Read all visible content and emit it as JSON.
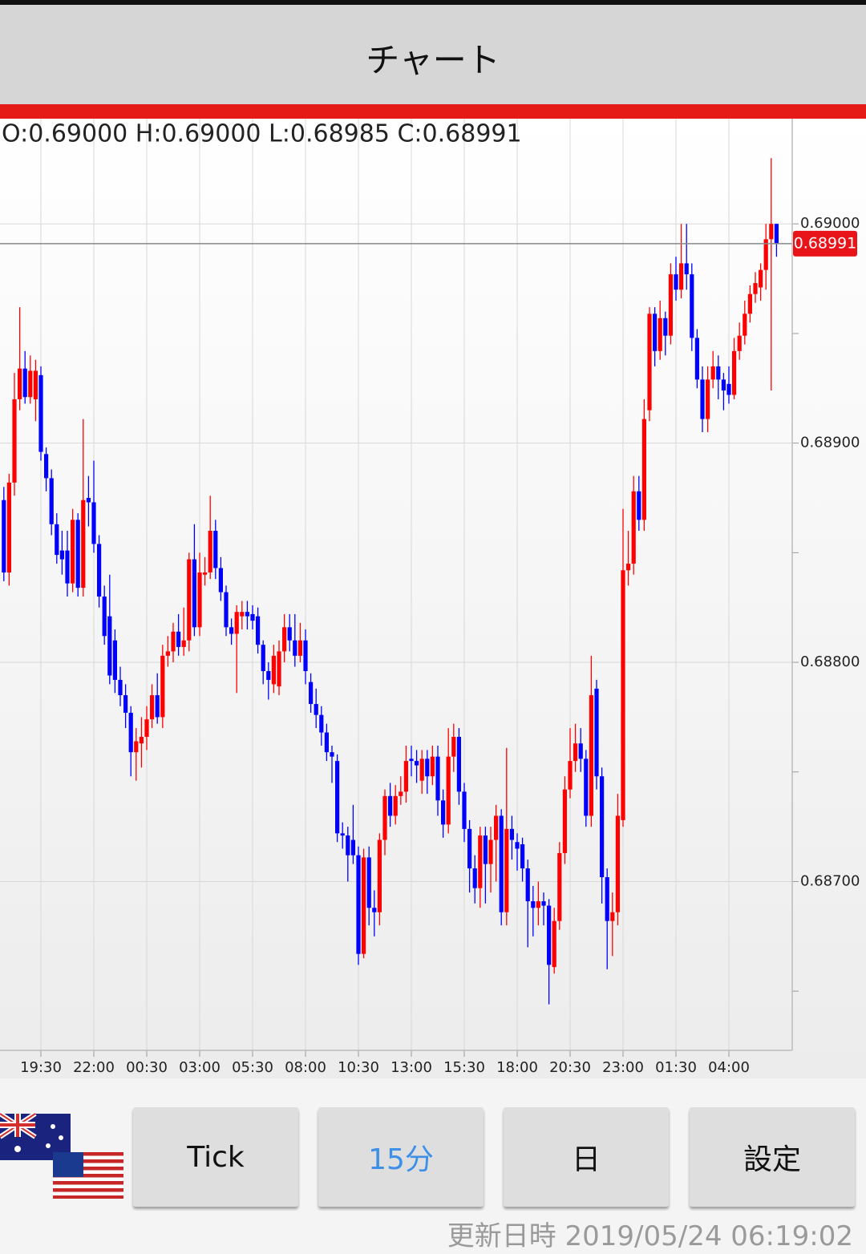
{
  "header": {
    "title": "チャート"
  },
  "chart_data": {
    "type": "candlestick",
    "ohlc_label": "O:0.69000 H:0.69000 L:0.68985 C:0.68991",
    "current_price": 0.68991,
    "up_color": "#ff0000",
    "down_color": "#0000ff",
    "categories": [
      null,
      null,
      null,
      null,
      null,
      null,
      null,
      "19:30",
      null,
      null,
      null,
      null,
      null,
      null,
      null,
      null,
      null,
      "22:00",
      null,
      null,
      null,
      null,
      null,
      null,
      null,
      null,
      null,
      "00:30",
      null,
      null,
      null,
      null,
      null,
      null,
      null,
      null,
      null,
      "03:00",
      null,
      null,
      null,
      null,
      null,
      null,
      null,
      null,
      null,
      "05:30",
      null,
      null,
      null,
      null,
      null,
      null,
      null,
      null,
      null,
      "08:00",
      null,
      null,
      null,
      null,
      null,
      null,
      null,
      null,
      null,
      "10:30",
      null,
      null,
      null,
      null,
      null,
      null,
      null,
      null,
      null,
      "13:00",
      null,
      null,
      null,
      null,
      null,
      null,
      null,
      null,
      null,
      "15:30",
      null,
      null,
      null,
      null,
      null,
      null,
      null,
      null,
      null,
      "18:00",
      null,
      null,
      null,
      null,
      null,
      null,
      null,
      null,
      null,
      "20:30",
      null,
      null,
      null,
      null,
      null,
      null,
      null,
      null,
      null,
      "23:00",
      null,
      null,
      null,
      null,
      null,
      null,
      null,
      null,
      null,
      "01:30",
      null,
      null,
      null,
      null,
      null,
      null,
      null,
      null,
      null,
      "04:00",
      null,
      null,
      null,
      null,
      null,
      null,
      null,
      null,
      null
    ],
    "open": [
      0.68874,
      0.68841,
      0.68882,
      0.6892,
      0.68934,
      0.68921,
      0.6892,
      0.68931,
      0.68895,
      0.68884,
      0.68863,
      0.68851,
      0.68851,
      0.68836,
      0.68865,
      0.68834,
      0.68875,
      0.68873,
      0.68854,
      0.6883,
      0.68821,
      0.6881,
      0.68792,
      0.68785,
      0.68777,
      0.68759,
      0.68763,
      0.68766,
      0.68774,
      0.68785,
      0.68775,
      0.68803,
      0.68805,
      0.68814,
      0.68807,
      0.6881,
      0.68847,
      0.68816,
      0.6884,
      0.68841,
      0.6886,
      0.68843,
      0.68832,
      0.68816,
      0.68813,
      0.68821,
      0.68823,
      0.68822,
      0.68821,
      0.68808,
      0.68796,
      0.6879,
      0.68789,
      0.68805,
      0.68816,
      0.6881,
      0.68803,
      0.6881,
      0.68791,
      0.68781,
      0.68776,
      0.68768,
      0.68759,
      0.68755,
      0.68722,
      0.68721,
      0.68719,
      0.68712,
      0.68667,
      0.68711,
      0.68688,
      0.68686,
      0.68719,
      0.68739,
      0.6873,
      0.68739,
      0.68741,
      0.68756,
      0.68755,
      0.68746,
      0.68756,
      0.68748,
      0.68757,
      0.68737,
      0.68726,
      0.68757,
      0.68766,
      0.68741,
      0.68724,
      0.68706,
      0.68697,
      0.68721,
      0.68708,
      0.68719,
      0.6873,
      0.68686,
      0.68724,
      0.68718,
      0.68717,
      0.68706,
      0.68691,
      0.68688,
      0.68691,
      0.68689,
      0.68661,
      0.68682,
      0.68713,
      0.68742,
      0.68755,
      0.68763,
      0.68756,
      0.6873,
      0.68788,
      0.68748,
      0.68702,
      0.68682,
      0.68686,
      0.68728,
      0.68842,
      0.68845,
      0.68878,
      0.68865,
      0.68915,
      0.68959,
      0.68942,
      0.68957,
      0.68949,
      0.68977,
      0.6897,
      0.68982,
      0.68977,
      0.68948,
      0.68929,
      0.68911,
      0.68929,
      0.68935,
      0.68929,
      0.68927,
      0.68922,
      0.68942,
      0.68949,
      0.68959,
      0.68968,
      0.68971,
      0.68979,
      0.68993,
      0.69
    ],
    "high": [
      0.6888,
      0.68886,
      0.68932,
      0.68962,
      0.68942,
      0.6894,
      0.68938,
      0.68935,
      0.68898,
      0.68888,
      0.68868,
      0.6886,
      0.6886,
      0.6887,
      0.68868,
      0.68911,
      0.68885,
      0.68892,
      0.68858,
      0.68835,
      0.6884,
      0.68815,
      0.68798,
      0.6879,
      0.6878,
      0.6877,
      0.68775,
      0.6878,
      0.6879,
      0.68795,
      0.68808,
      0.68812,
      0.68818,
      0.68822,
      0.68825,
      0.6885,
      0.68863,
      0.6885,
      0.68848,
      0.68876,
      0.68865,
      0.68848,
      0.68835,
      0.6882,
      0.68826,
      0.68828,
      0.68828,
      0.68826,
      0.68825,
      0.6881,
      0.688,
      0.68808,
      0.6881,
      0.68822,
      0.68822,
      0.68822,
      0.68818,
      0.68815,
      0.68795,
      0.68788,
      0.6878,
      0.68772,
      0.68762,
      0.68758,
      0.68727,
      0.68725,
      0.68735,
      0.68716,
      0.68715,
      0.68716,
      0.68696,
      0.68722,
      0.68742,
      0.68745,
      0.68744,
      0.68748,
      0.68762,
      0.68762,
      0.6876,
      0.6876,
      0.6876,
      0.68762,
      0.68762,
      0.68742,
      0.6877,
      0.68772,
      0.6877,
      0.68745,
      0.68728,
      0.68712,
      0.68725,
      0.68725,
      0.68725,
      0.68735,
      0.68733,
      0.68761,
      0.6873,
      0.68722,
      0.6872,
      0.6871,
      0.68698,
      0.687,
      0.68695,
      0.68692,
      0.68688,
      0.68718,
      0.68748,
      0.6877,
      0.68772,
      0.6877,
      0.6876,
      0.68803,
      0.68792,
      0.68752,
      0.68706,
      0.68695,
      0.6874,
      0.6887,
      0.6886,
      0.68885,
      0.68885,
      0.6892,
      0.68962,
      0.68962,
      0.68965,
      0.6896,
      0.68982,
      0.68985,
      0.69,
      0.69,
      0.68982,
      0.68952,
      0.68935,
      0.68935,
      0.68942,
      0.6894,
      0.68932,
      0.68935,
      0.68948,
      0.68955,
      0.68965,
      0.68972,
      0.68978,
      0.68982,
      0.69,
      0.6903,
      0.69
    ],
    "low": [
      0.68837,
      0.68835,
      0.68876,
      0.68915,
      0.68918,
      0.68918,
      0.6891,
      0.68892,
      0.68878,
      0.68858,
      0.68845,
      0.6884,
      0.6883,
      0.68832,
      0.6883,
      0.6883,
      0.68862,
      0.6885,
      0.68825,
      0.68808,
      0.6879,
      0.68786,
      0.6878,
      0.6877,
      0.68748,
      0.68746,
      0.68752,
      0.6876,
      0.6877,
      0.68772,
      0.6877,
      0.68798,
      0.688,
      0.68803,
      0.68803,
      0.68805,
      0.68812,
      0.68812,
      0.68835,
      0.68838,
      0.68838,
      0.68828,
      0.68812,
      0.68808,
      0.68786,
      0.68815,
      0.68815,
      0.68815,
      0.68804,
      0.6879,
      0.68783,
      0.68786,
      0.68785,
      0.688,
      0.68805,
      0.68798,
      0.688,
      0.6879,
      0.68777,
      0.6877,
      0.68762,
      0.68755,
      0.68745,
      0.68718,
      0.68715,
      0.687,
      0.68708,
      0.68662,
      0.68665,
      0.6868,
      0.68675,
      0.6868,
      0.68712,
      0.68725,
      0.68726,
      0.68735,
      0.68736,
      0.68748,
      0.68745,
      0.6874,
      0.6874,
      0.68744,
      0.6873,
      0.6872,
      0.68722,
      0.6875,
      0.68735,
      0.68718,
      0.68695,
      0.6869,
      0.68688,
      0.6869,
      0.68695,
      0.687,
      0.6868,
      0.6868,
      0.6871,
      0.68705,
      0.687,
      0.6867,
      0.68675,
      0.6868,
      0.6868,
      0.68644,
      0.68658,
      0.68678,
      0.68708,
      0.68738,
      0.6875,
      0.6875,
      0.68725,
      0.68725,
      0.68742,
      0.6869,
      0.6866,
      0.68666,
      0.6868,
      0.68725,
      0.68835,
      0.6884,
      0.6886,
      0.6886,
      0.6891,
      0.68935,
      0.68938,
      0.6894,
      0.68945,
      0.68965,
      0.68966,
      0.6897,
      0.68942,
      0.68925,
      0.68905,
      0.68905,
      0.68925,
      0.6892,
      0.68915,
      0.68918,
      0.6892,
      0.68938,
      0.68945,
      0.68955,
      0.68964,
      0.68965,
      0.6897,
      0.68924,
      0.68985
    ],
    "close": [
      0.68841,
      0.68882,
      0.6892,
      0.68934,
      0.68921,
      0.68933,
      0.68933,
      0.68896,
      0.68884,
      0.68863,
      0.68849,
      0.68847,
      0.68836,
      0.68865,
      0.68834,
      0.68874,
      0.68873,
      0.68854,
      0.6883,
      0.68812,
      0.68794,
      0.68792,
      0.68785,
      0.68777,
      0.68759,
      0.68764,
      0.68766,
      0.68774,
      0.68785,
      0.68775,
      0.68803,
      0.68805,
      0.68814,
      0.68807,
      0.6881,
      0.68847,
      0.68816,
      0.68841,
      0.68841,
      0.6886,
      0.68843,
      0.68832,
      0.68816,
      0.68813,
      0.68823,
      0.68823,
      0.68821,
      0.68819,
      0.68808,
      0.68796,
      0.68792,
      0.68803,
      0.68805,
      0.68816,
      0.6881,
      0.68803,
      0.6881,
      0.68796,
      0.68781,
      0.68776,
      0.68768,
      0.68759,
      0.68757,
      0.68722,
      0.68721,
      0.68712,
      0.68712,
      0.68667,
      0.68711,
      0.68688,
      0.68686,
      0.68719,
      0.68739,
      0.6873,
      0.68739,
      0.68741,
      0.68755,
      0.68755,
      0.68753,
      0.68756,
      0.68748,
      0.68757,
      0.68737,
      0.68726,
      0.68757,
      0.68766,
      0.68741,
      0.68724,
      0.68706,
      0.68697,
      0.68721,
      0.68708,
      0.68719,
      0.6873,
      0.68686,
      0.68724,
      0.68719,
      0.68715,
      0.68706,
      0.68691,
      0.68688,
      0.68691,
      0.68689,
      0.68662,
      0.68682,
      0.68713,
      0.68742,
      0.68755,
      0.68763,
      0.68756,
      0.6873,
      0.68785,
      0.68748,
      0.68702,
      0.68682,
      0.68686,
      0.6873,
      0.68842,
      0.68845,
      0.68878,
      0.68865,
      0.68911,
      0.68959,
      0.68942,
      0.68957,
      0.68949,
      0.68977,
      0.6897,
      0.68982,
      0.68977,
      0.68948,
      0.68929,
      0.68911,
      0.68929,
      0.68935,
      0.68929,
      0.68924,
      0.68922,
      0.68942,
      0.68949,
      0.68959,
      0.68968,
      0.68973,
      0.68979,
      0.68993,
      0.69,
      0.68991
    ],
    "ylim": [
      0.68623,
      0.69048
    ],
    "yticks": [
      {
        "value": 0.687,
        "label": "0.68700"
      },
      {
        "value": 0.688,
        "label": "0.68800"
      },
      {
        "value": 0.689,
        "label": "0.68900"
      },
      {
        "value": 0.69,
        "label": "0.69000"
      }
    ],
    "yminorticks": [
      0.6865,
      0.6875,
      0.6885,
      0.6895
    ],
    "grid": true
  },
  "buttons": [
    {
      "label": "Tick"
    },
    {
      "label": "15分",
      "active": true
    },
    {
      "label": "日"
    },
    {
      "label": "設定"
    }
  ],
  "footer": {
    "updated": "更新日時 2019/05/24 06:19:02"
  }
}
